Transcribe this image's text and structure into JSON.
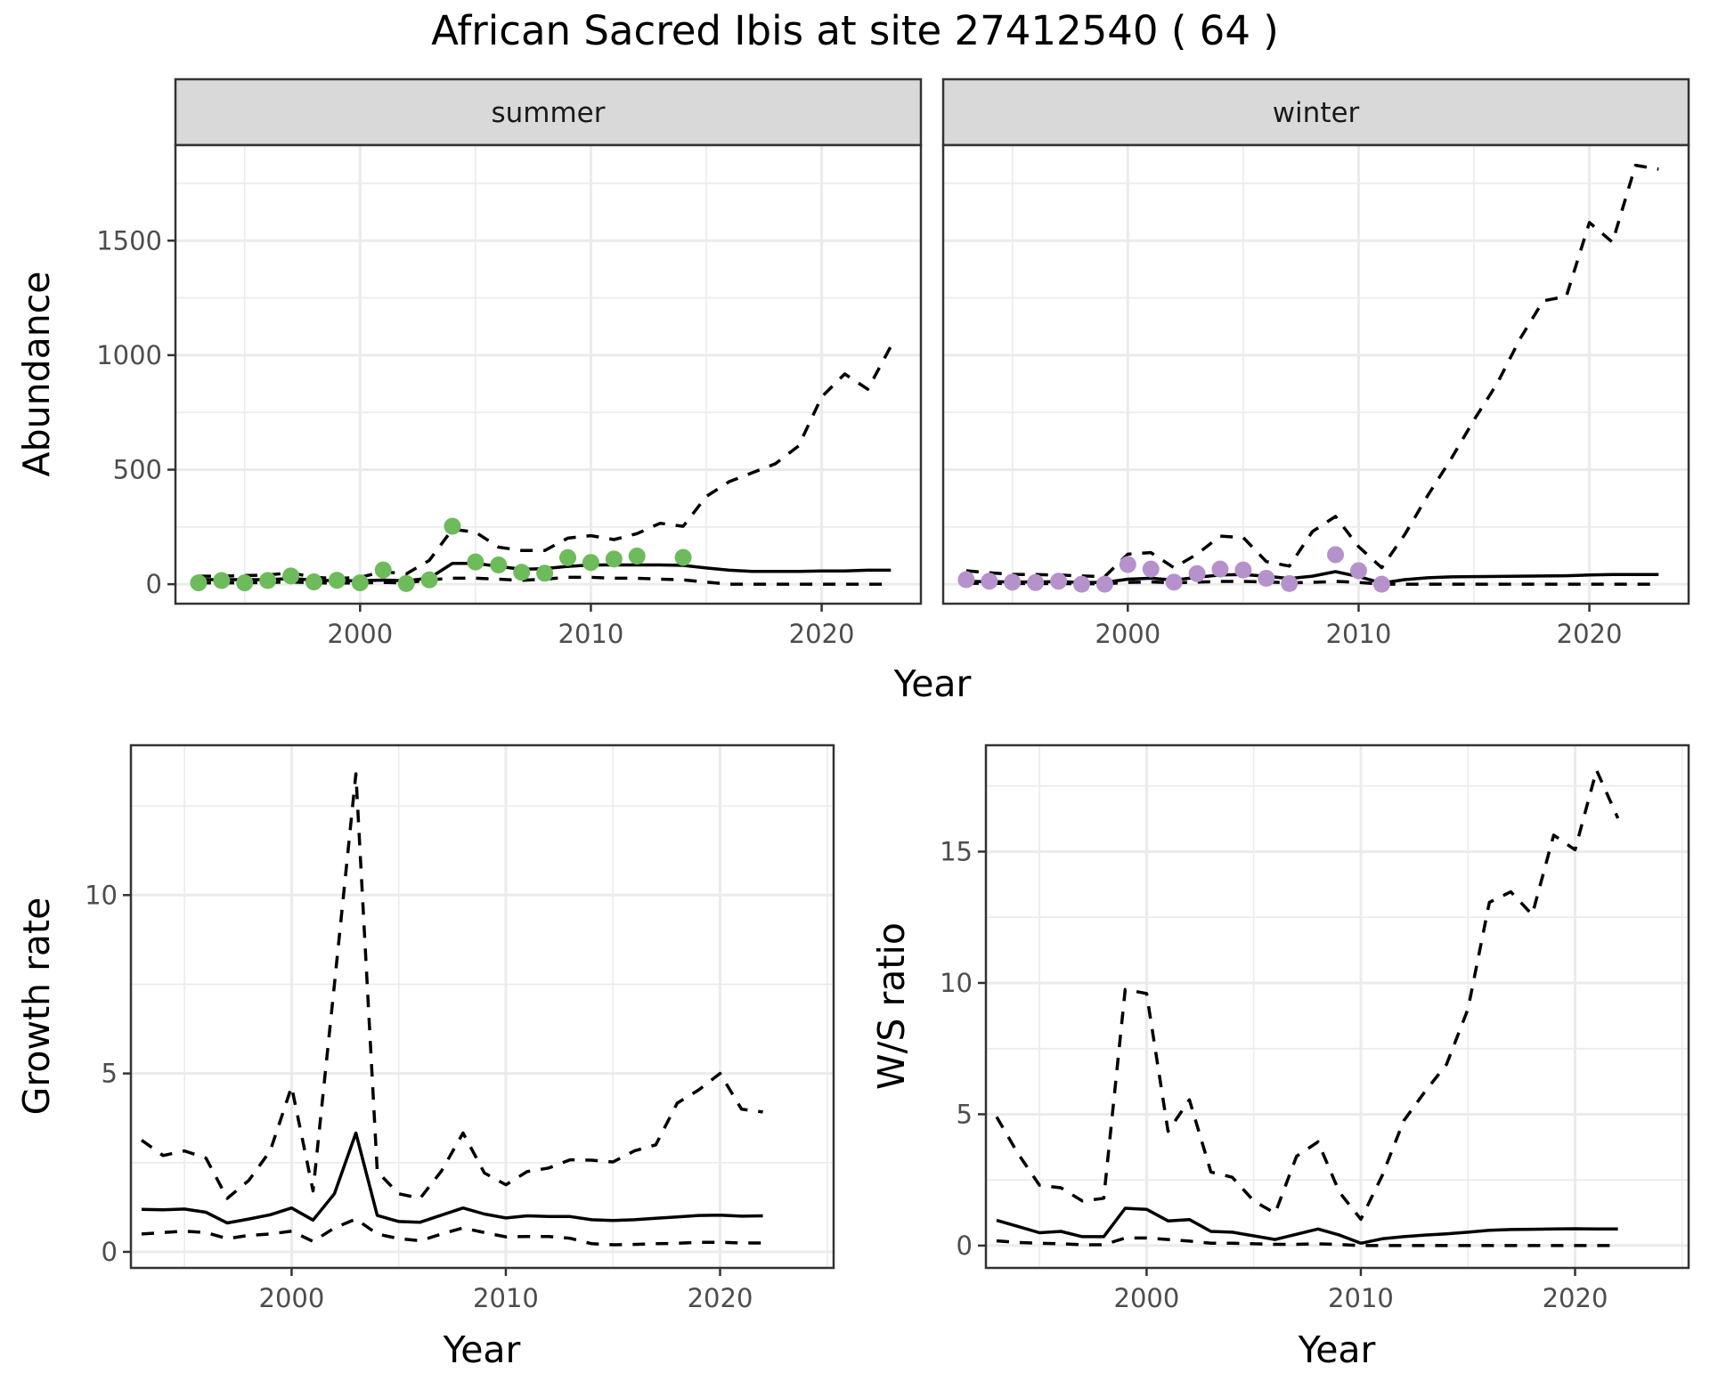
{
  "title": "African Sacred Ibis at site 27412540 ( 64 )",
  "colors": {
    "summer_points": "#6dbb5b",
    "winter_points": "#b592cb",
    "lines": "#000000",
    "strip_bg": "#d9d9d9",
    "grid": "#ebebeb",
    "panel_border": "#333333"
  },
  "chart_data": [
    {
      "type": "line",
      "panel": "abundance",
      "facet_label": "summer",
      "xlabel": "Year",
      "ylabel": "Abundance",
      "xlim": [
        1992,
        2024.3
      ],
      "ylim": [
        -85,
        1917
      ],
      "x_ticks": [
        2000,
        2010,
        2020
      ],
      "x_tick_labels": [
        "2000",
        "2010",
        "2020"
      ],
      "y_ticks": [
        0,
        500,
        1000,
        1500
      ],
      "y_tick_labels": [
        "0",
        "500",
        "1000",
        "1500"
      ],
      "grid": true,
      "x": [
        1993,
        1994,
        1995,
        1996,
        1997,
        1998,
        1999,
        2000,
        2001,
        2002,
        2003,
        2004,
        2005,
        2006,
        2007,
        2008,
        2009,
        2010,
        2011,
        2012,
        2013,
        2014,
        2015,
        2016,
        2017,
        2018,
        2019,
        2020,
        2021,
        2022,
        2023
      ],
      "series": [
        {
          "name": "upper",
          "style": "dashed",
          "values": [
            35,
            35,
            38,
            40,
            50,
            30,
            25,
            30,
            55,
            45,
            104,
            240,
            227,
            162,
            147,
            147,
            201,
            212,
            195,
            221,
            266,
            253,
            383,
            448,
            487,
            526,
            604,
            818,
            918,
            851,
            1039
          ]
        },
        {
          "name": "median",
          "style": "solid",
          "values": [
            20,
            20,
            20,
            20,
            25,
            18,
            15,
            15,
            18,
            15,
            26,
            91,
            91,
            78,
            65,
            68,
            78,
            84,
            84,
            84,
            84,
            82,
            71,
            61,
            56,
            56,
            56,
            58,
            58,
            61,
            61
          ]
        },
        {
          "name": "lower",
          "style": "dashed",
          "values": [
            6,
            6,
            6,
            8,
            10,
            6,
            5,
            5,
            8,
            5,
            19,
            26,
            26,
            22,
            17,
            22,
            30,
            30,
            26,
            26,
            22,
            19,
            9,
            0,
            0,
            0,
            0,
            0,
            0,
            0,
            0
          ]
        }
      ],
      "points": {
        "x": [
          1993,
          1994,
          1995,
          1996,
          1997,
          1998,
          1999,
          2000,
          2001,
          2002,
          2003,
          2004,
          2005,
          2006,
          2007,
          2008,
          2009,
          2010,
          2011,
          2012,
          2014
        ],
        "y": [
          6,
          16,
          6,
          16,
          36,
          10,
          17,
          6,
          62,
          3,
          19,
          253,
          97,
          84,
          52,
          48,
          116,
          95,
          110,
          123,
          117
        ]
      }
    },
    {
      "type": "line",
      "panel": "abundance",
      "facet_label": "winter",
      "xlabel": "Year",
      "ylabel": "Abundance",
      "xlim": [
        1992,
        2024.3
      ],
      "ylim": [
        -85,
        1917
      ],
      "x_ticks": [
        2000,
        2010,
        2020
      ],
      "x_tick_labels": [
        "2000",
        "2010",
        "2020"
      ],
      "y_ticks": [
        0,
        500,
        1000,
        1500
      ],
      "y_tick_labels": [
        "0",
        "500",
        "1000",
        "1500"
      ],
      "grid": true,
      "x": [
        1993,
        1994,
        1995,
        1996,
        1997,
        1998,
        1999,
        2000,
        2001,
        2002,
        2003,
        2004,
        2005,
        2006,
        2007,
        2008,
        2009,
        2010,
        2011,
        2012,
        2013,
        2014,
        2015,
        2016,
        2017,
        2018,
        2019,
        2020,
        2021,
        2022,
        2023
      ],
      "series": [
        {
          "name": "upper",
          "style": "dashed",
          "values": [
            59,
            50,
            43,
            42,
            40,
            36,
            33,
            131,
            138,
            72,
            131,
            210,
            204,
            99,
            79,
            230,
            296,
            164,
            72,
            217,
            388,
            546,
            717,
            875,
            1072,
            1237,
            1257,
            1579,
            1493,
            1829,
            1812
          ]
        },
        {
          "name": "median",
          "style": "solid",
          "values": [
            12,
            11,
            10,
            10,
            11,
            8,
            8,
            22,
            26,
            18,
            30,
            40,
            42,
            35,
            25,
            35,
            55,
            33,
            5,
            20,
            28,
            32,
            33,
            34,
            35,
            36,
            37,
            40,
            42,
            42,
            42
          ]
        },
        {
          "name": "lower",
          "style": "dashed",
          "values": [
            4,
            4,
            3,
            3,
            3,
            2,
            2,
            8,
            10,
            6,
            9,
            12,
            12,
            10,
            6,
            8,
            12,
            8,
            0,
            0,
            0,
            0,
            0,
            0,
            0,
            0,
            0,
            0,
            0,
            0,
            0
          ]
        }
      ],
      "points": {
        "x": [
          1993,
          1994,
          1995,
          1996,
          1997,
          1998,
          1999,
          2000,
          2001,
          2002,
          2003,
          2004,
          2005,
          2006,
          2007,
          2009,
          2010,
          2011
        ],
        "y": [
          20,
          13,
          9,
          7,
          13,
          0,
          0,
          86,
          66,
          9,
          46,
          66,
          62,
          26,
          3,
          129,
          59,
          0
        ]
      }
    },
    {
      "type": "line",
      "panel": "growth",
      "xlabel": "Year",
      "ylabel": "Growth rate",
      "xlim": [
        1992.5,
        2025.3
      ],
      "ylim": [
        -0.45,
        14.2
      ],
      "x_ticks": [
        2000,
        2010,
        2020
      ],
      "x_tick_labels": [
        "2000",
        "2010",
        "2020"
      ],
      "y_ticks": [
        0,
        5,
        10
      ],
      "y_tick_labels": [
        "0",
        "5",
        "10"
      ],
      "grid": true,
      "x": [
        1993,
        1994,
        1995,
        1996,
        1997,
        1998,
        1999,
        2000,
        2001,
        2002,
        2003,
        2004,
        2005,
        2006,
        2007,
        2008,
        2009,
        2010,
        2011,
        2012,
        2013,
        2014,
        2015,
        2016,
        2017,
        2018,
        2019,
        2020,
        2021,
        2022
      ],
      "series": [
        {
          "name": "upper",
          "style": "dashed",
          "values": [
            3.13,
            2.7,
            2.83,
            2.63,
            1.5,
            2.0,
            2.83,
            4.63,
            1.71,
            7.5,
            13.4,
            2.25,
            1.63,
            1.5,
            2.27,
            3.33,
            2.21,
            1.88,
            2.25,
            2.35,
            2.58,
            2.57,
            2.52,
            2.83,
            3.0,
            4.17,
            4.54,
            5.0,
            4.0,
            3.92
          ]
        },
        {
          "name": "median",
          "style": "solid",
          "values": [
            1.19,
            1.18,
            1.2,
            1.11,
            0.81,
            0.92,
            1.04,
            1.23,
            0.89,
            1.63,
            3.33,
            1.02,
            0.85,
            0.83,
            1.03,
            1.23,
            1.06,
            0.95,
            1.01,
            0.99,
            0.99,
            0.9,
            0.88,
            0.9,
            0.94,
            0.98,
            1.02,
            1.03,
            1.0,
            1.01
          ]
        },
        {
          "name": "lower",
          "style": "dashed",
          "values": [
            0.5,
            0.54,
            0.58,
            0.54,
            0.37,
            0.46,
            0.5,
            0.58,
            0.29,
            0.67,
            0.92,
            0.5,
            0.37,
            0.31,
            0.5,
            0.67,
            0.54,
            0.42,
            0.43,
            0.43,
            0.38,
            0.23,
            0.2,
            0.21,
            0.23,
            0.24,
            0.27,
            0.27,
            0.25,
            0.25
          ]
        }
      ]
    },
    {
      "type": "line",
      "panel": "ws_ratio",
      "xlabel": "Year",
      "ylabel": "W/S ratio",
      "xlim": [
        1992.5,
        2025.3
      ],
      "ylim": [
        -0.85,
        19.05
      ],
      "x_ticks": [
        2000,
        2010,
        2020
      ],
      "x_tick_labels": [
        "2000",
        "2010",
        "2020"
      ],
      "y_ticks": [
        0,
        5,
        10,
        15
      ],
      "y_tick_labels": [
        "0",
        "5",
        "10",
        "15"
      ],
      "grid": true,
      "x": [
        1993,
        1994,
        1995,
        1996,
        1997,
        1998,
        1999,
        2000,
        2001,
        2002,
        2003,
        2004,
        2005,
        2006,
        2007,
        2008,
        2009,
        2010,
        2011,
        2012,
        2013,
        2014,
        2015,
        2016,
        2017,
        2018,
        2019,
        2020,
        2021,
        2022
      ],
      "series": [
        {
          "name": "upper",
          "style": "dashed",
          "values": [
            4.9,
            3.5,
            2.3,
            2.2,
            1.7,
            1.8,
            9.75,
            9.6,
            4.35,
            5.55,
            2.8,
            2.6,
            1.7,
            1.23,
            3.4,
            3.95,
            2.03,
            1.0,
            2.67,
            4.75,
            5.87,
            6.9,
            9.0,
            13.07,
            13.47,
            12.6,
            15.63,
            15.07,
            18.1,
            16.27
          ]
        },
        {
          "name": "median",
          "style": "solid",
          "values": [
            0.96,
            0.73,
            0.49,
            0.54,
            0.34,
            0.34,
            1.42,
            1.38,
            0.94,
            0.99,
            0.54,
            0.51,
            0.37,
            0.23,
            0.43,
            0.63,
            0.4,
            0.09,
            0.26,
            0.34,
            0.4,
            0.45,
            0.51,
            0.58,
            0.61,
            0.62,
            0.63,
            0.64,
            0.63,
            0.63
          ]
        },
        {
          "name": "lower",
          "style": "dashed",
          "values": [
            0.18,
            0.12,
            0.09,
            0.07,
            0.03,
            0.03,
            0.29,
            0.29,
            0.23,
            0.17,
            0.09,
            0.09,
            0.07,
            0.05,
            0.05,
            0.07,
            0.04,
            0,
            0,
            0,
            0,
            0,
            0,
            0,
            0,
            0,
            0,
            0,
            0,
            0
          ]
        }
      ]
    }
  ]
}
